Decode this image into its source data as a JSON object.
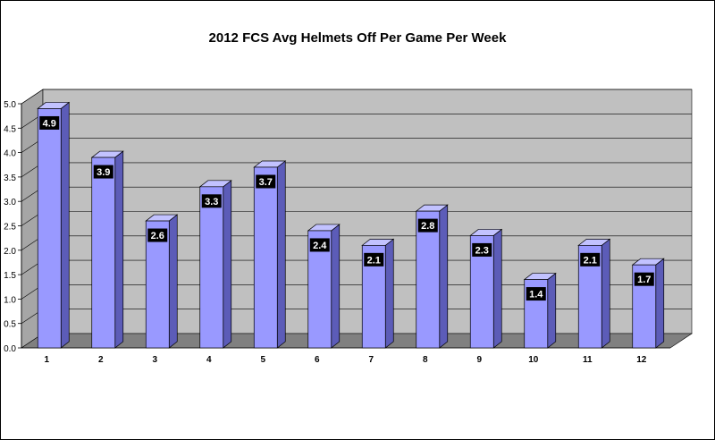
{
  "chart_data": {
    "type": "bar",
    "title": "2012 FCS  Avg Helmets Off Per Game Per Week",
    "categories": [
      "1",
      "2",
      "3",
      "4",
      "5",
      "6",
      "7",
      "8",
      "9",
      "10",
      "11",
      "12"
    ],
    "values": [
      4.9,
      3.9,
      2.6,
      3.3,
      3.7,
      2.4,
      2.1,
      2.8,
      2.3,
      1.4,
      2.1,
      1.7
    ],
    "data_labels": [
      "4.9",
      "3.9",
      "2.6",
      "3.3",
      "3.7",
      "2.4",
      "2.1",
      "2.8",
      "2.3",
      "1.4",
      "2.1",
      "1.7"
    ],
    "y_ticks": [
      "0.0",
      "0.5",
      "1.0",
      "1.5",
      "2.0",
      "2.5",
      "3.0",
      "3.5",
      "4.0",
      "4.5",
      "5.0"
    ],
    "ylim": [
      0,
      5
    ],
    "xlabel": "",
    "ylabel": "",
    "grid": true,
    "legend": "none",
    "style": "3d-column",
    "colors": {
      "bar_front": "#9999ff",
      "bar_side": "#5c5cb8",
      "bar_top": "#c2c2ff",
      "wall": "#c0c0c0",
      "floor": "#808080",
      "label_bg": "#000000",
      "label_text": "#ffffff"
    }
  }
}
